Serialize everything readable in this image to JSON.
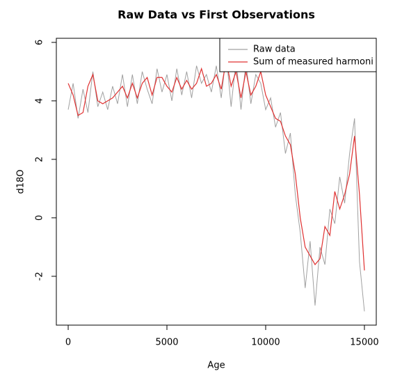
{
  "chart_data": {
    "type": "line",
    "title": "Raw Data vs First Observations",
    "x_label": "Age",
    "y_label": "d18O",
    "x": [
      0,
      250,
      500,
      750,
      1000,
      1250,
      1500,
      1750,
      2000,
      2250,
      2500,
      2750,
      3000,
      3250,
      3500,
      3750,
      4000,
      4250,
      4500,
      4750,
      5000,
      5250,
      5500,
      5750,
      6000,
      6250,
      6500,
      6750,
      7000,
      7250,
      7500,
      7750,
      8000,
      8250,
      8500,
      8750,
      9000,
      9250,
      9500,
      9750,
      10000,
      10250,
      10500,
      10750,
      11000,
      11250,
      11500,
      11750,
      12000,
      12250,
      12500,
      12750,
      13000,
      13250,
      13500,
      13750,
      14000,
      14250,
      14500,
      14750,
      15000
    ],
    "series": [
      {
        "name": "Raw data",
        "color": "#a0a0a0",
        "values": [
          3.7,
          4.6,
          3.4,
          4.4,
          3.6,
          5.0,
          3.8,
          4.3,
          3.7,
          4.5,
          3.9,
          4.9,
          3.8,
          4.9,
          3.9,
          5.0,
          4.4,
          3.9,
          5.1,
          4.3,
          4.9,
          4.0,
          5.1,
          4.2,
          5.0,
          4.1,
          5.2,
          4.6,
          4.9,
          4.3,
          5.2,
          4.1,
          5.6,
          3.8,
          5.4,
          3.7,
          5.3,
          3.9,
          4.9,
          4.6,
          3.7,
          4.1,
          3.1,
          3.6,
          2.2,
          2.9,
          0.8,
          -0.5,
          -2.4,
          -0.8,
          -3.0,
          -1.0,
          -1.6,
          0.3,
          -0.2,
          1.4,
          0.5,
          2.2,
          3.4,
          -1.5,
          -3.2
        ]
      },
      {
        "name": "Sum of measured harmoni",
        "color": "#e03030",
        "values": [
          4.6,
          4.2,
          3.5,
          3.6,
          4.5,
          4.9,
          4.0,
          3.9,
          4.0,
          4.1,
          4.3,
          4.5,
          4.1,
          4.6,
          4.1,
          4.6,
          4.8,
          4.2,
          4.8,
          4.8,
          4.5,
          4.3,
          4.8,
          4.4,
          4.7,
          4.4,
          4.6,
          5.1,
          4.5,
          4.6,
          4.9,
          4.4,
          5.4,
          4.5,
          5.0,
          4.1,
          5.0,
          4.2,
          4.5,
          5.0,
          4.2,
          3.8,
          3.4,
          3.3,
          2.8,
          2.5,
          1.5,
          0.0,
          -1.0,
          -1.3,
          -1.6,
          -1.4,
          -0.3,
          -0.6,
          0.9,
          0.3,
          0.8,
          1.5,
          2.8,
          0.8,
          -1.8
        ]
      }
    ],
    "xlim": [
      -600,
      15600
    ],
    "xticks": [
      0,
      5000,
      10000,
      15000
    ],
    "ylim": [
      -3.67,
      6.14
    ],
    "yticks": [
      -2,
      0,
      2,
      4,
      6
    ],
    "legend": "top-right"
  }
}
